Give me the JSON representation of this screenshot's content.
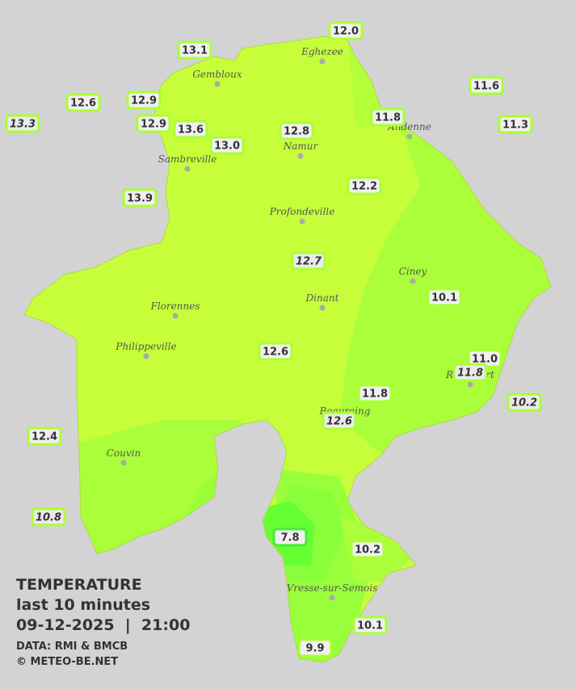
{
  "legend": {
    "title": "TEMPERATURE",
    "subtitle": "last 10 minutes",
    "datetime": "09-12-2025  |  21:00",
    "source": "DATA: RMI & BMCB",
    "copyright": "© METEO-BE.NET"
  },
  "cities": [
    {
      "name": "Eghezee"
    },
    {
      "name": "Gembloux"
    },
    {
      "name": "Andenne"
    },
    {
      "name": "Namur"
    },
    {
      "name": "Sambreville"
    },
    {
      "name": "Profondeville"
    },
    {
      "name": "Ciney"
    },
    {
      "name": "Dinant"
    },
    {
      "name": "Florennes"
    },
    {
      "name": "Philippeville"
    },
    {
      "name": "Rochefort"
    },
    {
      "name": "Beauraing"
    },
    {
      "name": "Couvin"
    },
    {
      "name": "Vresse-sur-Semois"
    }
  ],
  "stations": [
    {
      "value": "12.0"
    },
    {
      "value": "13.1"
    },
    {
      "value": "12.6"
    },
    {
      "value": "12.9"
    },
    {
      "value": "11.6"
    },
    {
      "value": "13.3"
    },
    {
      "value": "12.9"
    },
    {
      "value": "13.6"
    },
    {
      "value": "12.8"
    },
    {
      "value": "11.8"
    },
    {
      "value": "11.3"
    },
    {
      "value": "13.0"
    },
    {
      "value": "12.2"
    },
    {
      "value": "13.9"
    },
    {
      "value": "12.7"
    },
    {
      "value": "10.1"
    },
    {
      "value": "12.6"
    },
    {
      "value": "11.0"
    },
    {
      "value": "11.8"
    },
    {
      "value": "11.8"
    },
    {
      "value": "10.2"
    },
    {
      "value": "12.6"
    },
    {
      "value": "12.4"
    },
    {
      "value": "10.8"
    },
    {
      "value": "7.8"
    },
    {
      "value": "10.2"
    },
    {
      "value": "10.1"
    },
    {
      "value": "9.9"
    }
  ]
}
